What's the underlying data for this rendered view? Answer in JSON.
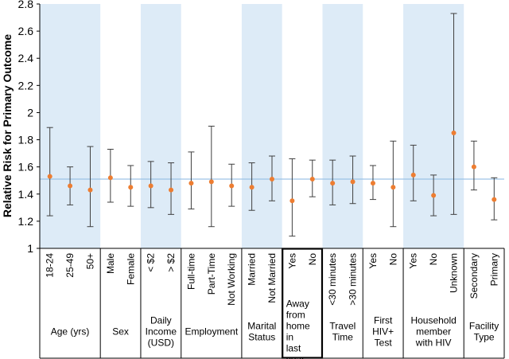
{
  "chart_data": {
    "type": "scatter",
    "title": "",
    "ylabel": "Relative Risk for Primary Outcome",
    "xlabel": "",
    "ylim": [
      1,
      2.8
    ],
    "yticks": [
      "1",
      "1.2",
      "1.4",
      "1.6",
      "1.8",
      "2",
      "2.2",
      "2.4",
      "2.6",
      "2.8"
    ],
    "reference_line": 1.51,
    "colors": {
      "point": "#ED7D31",
      "band": "#DDEBF7",
      "reference": "#9DC3E6",
      "errorbar": "#404040"
    },
    "groups": [
      {
        "label": "Age (yrs)",
        "shaded": true,
        "highlight": false,
        "categories": [
          {
            "label": "18-24",
            "estimate": 1.53,
            "lower": 1.24,
            "upper": 1.89
          },
          {
            "label": "25-49",
            "estimate": 1.46,
            "lower": 1.32,
            "upper": 1.6
          },
          {
            "label": "50+",
            "estimate": 1.43,
            "lower": 1.16,
            "upper": 1.75
          }
        ]
      },
      {
        "label": "Sex",
        "shaded": false,
        "highlight": false,
        "categories": [
          {
            "label": "Male",
            "estimate": 1.52,
            "lower": 1.34,
            "upper": 1.73
          },
          {
            "label": "Female",
            "estimate": 1.45,
            "lower": 1.31,
            "upper": 1.61
          }
        ]
      },
      {
        "label": "Daily Income (USD)",
        "shaded": true,
        "highlight": false,
        "categories": [
          {
            "label": "< $2",
            "estimate": 1.46,
            "lower": 1.3,
            "upper": 1.64
          },
          {
            "label": "> $2",
            "estimate": 1.43,
            "lower": 1.25,
            "upper": 1.63
          }
        ]
      },
      {
        "label": "Employment",
        "shaded": false,
        "highlight": false,
        "categories": [
          {
            "label": "Full-time",
            "estimate": 1.48,
            "lower": 1.29,
            "upper": 1.71
          },
          {
            "label": "Part-Time",
            "estimate": 1.49,
            "lower": 1.16,
            "upper": 1.9
          },
          {
            "label": "Not Working",
            "estimate": 1.46,
            "lower": 1.31,
            "upper": 1.62
          }
        ]
      },
      {
        "label": "Marital Status",
        "shaded": true,
        "highlight": false,
        "categories": [
          {
            "label": "Married",
            "estimate": 1.45,
            "lower": 1.28,
            "upper": 1.63
          },
          {
            "label": "Not Married",
            "estimate": 1.51,
            "lower": 1.35,
            "upper": 1.68
          }
        ]
      },
      {
        "label": "Away from home in last year",
        "shaded": false,
        "highlight": true,
        "categories": [
          {
            "label": "Yes",
            "estimate": 1.35,
            "lower": 1.09,
            "upper": 1.66
          },
          {
            "label": "No",
            "estimate": 1.51,
            "lower": 1.38,
            "upper": 1.65
          }
        ]
      },
      {
        "label": "Travel Time",
        "shaded": true,
        "highlight": false,
        "categories": [
          {
            "label": "<30 minutes",
            "estimate": 1.48,
            "lower": 1.32,
            "upper": 1.65
          },
          {
            "label": ">30 minutes",
            "estimate": 1.49,
            "lower": 1.33,
            "upper": 1.68
          }
        ]
      },
      {
        "label": "First HIV+ Test",
        "shaded": false,
        "highlight": false,
        "categories": [
          {
            "label": "Yes",
            "estimate": 1.48,
            "lower": 1.36,
            "upper": 1.61
          },
          {
            "label": "No",
            "estimate": 1.45,
            "lower": 1.16,
            "upper": 1.79
          }
        ]
      },
      {
        "label": "Household member with HIV",
        "shaded": true,
        "highlight": false,
        "categories": [
          {
            "label": "Yes",
            "estimate": 1.54,
            "lower": 1.35,
            "upper": 1.76
          },
          {
            "label": "No",
            "estimate": 1.39,
            "lower": 1.24,
            "upper": 1.54
          },
          {
            "label": "Unknown",
            "estimate": 1.85,
            "lower": 1.25,
            "upper": 2.73
          }
        ]
      },
      {
        "label": "Facility Type",
        "shaded": false,
        "highlight": false,
        "categories": [
          {
            "label": "Secondary",
            "estimate": 1.6,
            "lower": 1.43,
            "upper": 1.79
          },
          {
            "label": "Primary",
            "estimate": 1.36,
            "lower": 1.21,
            "upper": 1.52
          }
        ]
      }
    ]
  }
}
